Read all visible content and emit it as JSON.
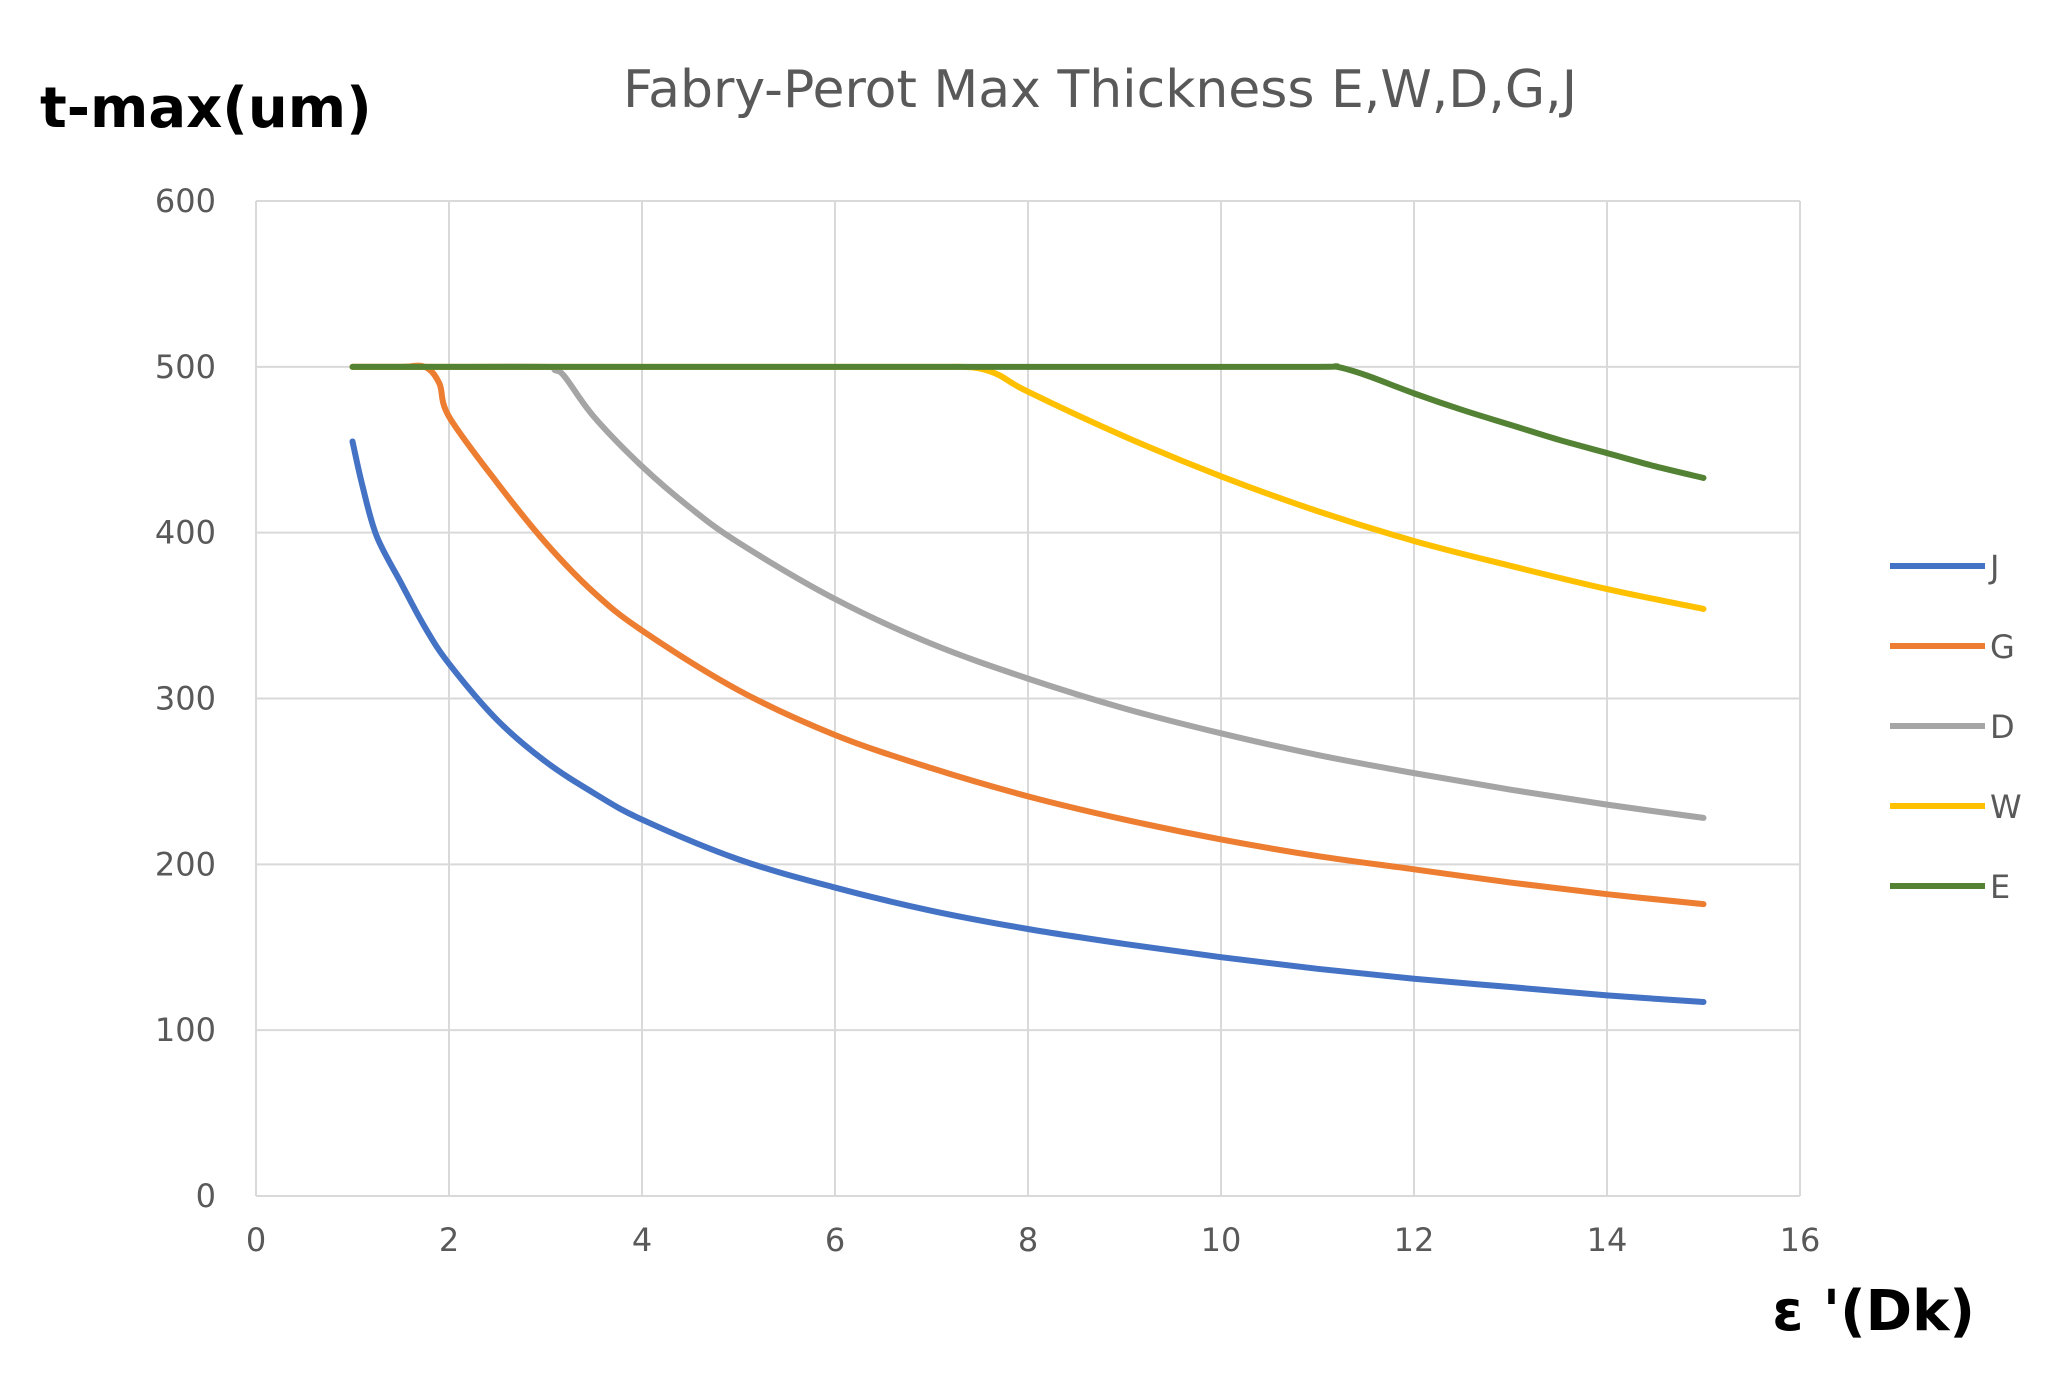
{
  "chart_data": {
    "type": "line",
    "title": "Fabry-Perot Max Thickness E,W,D,G,J",
    "ylabel": "t-max(um)",
    "xlabel": "ε '(Dk)",
    "xlim": [
      0,
      16
    ],
    "ylim": [
      0,
      600
    ],
    "xticks": [
      0,
      2,
      4,
      6,
      8,
      10,
      12,
      14,
      16
    ],
    "yticks": [
      0,
      100,
      200,
      300,
      400,
      500,
      600
    ],
    "grid": true,
    "legend_position": "right",
    "series": [
      {
        "name": "J",
        "color": "#4472C4",
        "x": [
          1,
          1.1,
          1.25,
          1.5,
          1.75,
          2,
          2.5,
          3,
          3.5,
          4,
          5,
          6,
          7,
          8,
          9,
          10,
          11,
          12,
          13,
          14,
          15
        ],
        "y": [
          455,
          429,
          398,
          370,
          343,
          321,
          287,
          262,
          243,
          227,
          203,
          186,
          172,
          161,
          152,
          144,
          137,
          131,
          126,
          121,
          117
        ]
      },
      {
        "name": "G",
        "color": "#ED7D31",
        "x": [
          1,
          1.5,
          1.75,
          1.9,
          2,
          2.5,
          3,
          3.5,
          4,
          5,
          6,
          7,
          8,
          9,
          10,
          11,
          12,
          13,
          14,
          15
        ],
        "y": [
          500,
          500,
          500,
          490,
          470,
          430,
          394,
          364,
          341,
          305,
          278,
          258,
          241,
          227,
          215,
          205,
          197,
          189,
          182,
          176
        ]
      },
      {
        "name": "D",
        "color": "#A5A5A5",
        "x": [
          1,
          2,
          3,
          3.1,
          3.2,
          3.5,
          4,
          4.5,
          5,
          6,
          7,
          8,
          9,
          10,
          11,
          12,
          13,
          14,
          15
        ],
        "y": [
          500,
          500,
          500,
          498,
          494,
          470,
          440,
          415,
          394,
          360,
          333,
          312,
          294,
          279,
          266,
          255,
          245,
          236,
          228
        ]
      },
      {
        "name": "W",
        "color": "#FFC000",
        "x": [
          1,
          3,
          5,
          7,
          7.3,
          7.5,
          7.7,
          8,
          9,
          10,
          11,
          12,
          13,
          14,
          15
        ],
        "y": [
          500,
          500,
          500,
          500,
          500,
          499,
          495,
          485,
          458,
          434,
          413,
          395,
          380,
          366,
          354
        ]
      },
      {
        "name": "E",
        "color": "#548235",
        "x": [
          1,
          3,
          5,
          7,
          9,
          11,
          11.2,
          11.5,
          12,
          12.5,
          13,
          13.5,
          14,
          14.5,
          15
        ],
        "y": [
          500,
          500,
          500,
          500,
          500,
          500,
          500,
          495,
          484,
          474,
          465,
          456,
          448,
          440,
          433
        ]
      }
    ]
  }
}
